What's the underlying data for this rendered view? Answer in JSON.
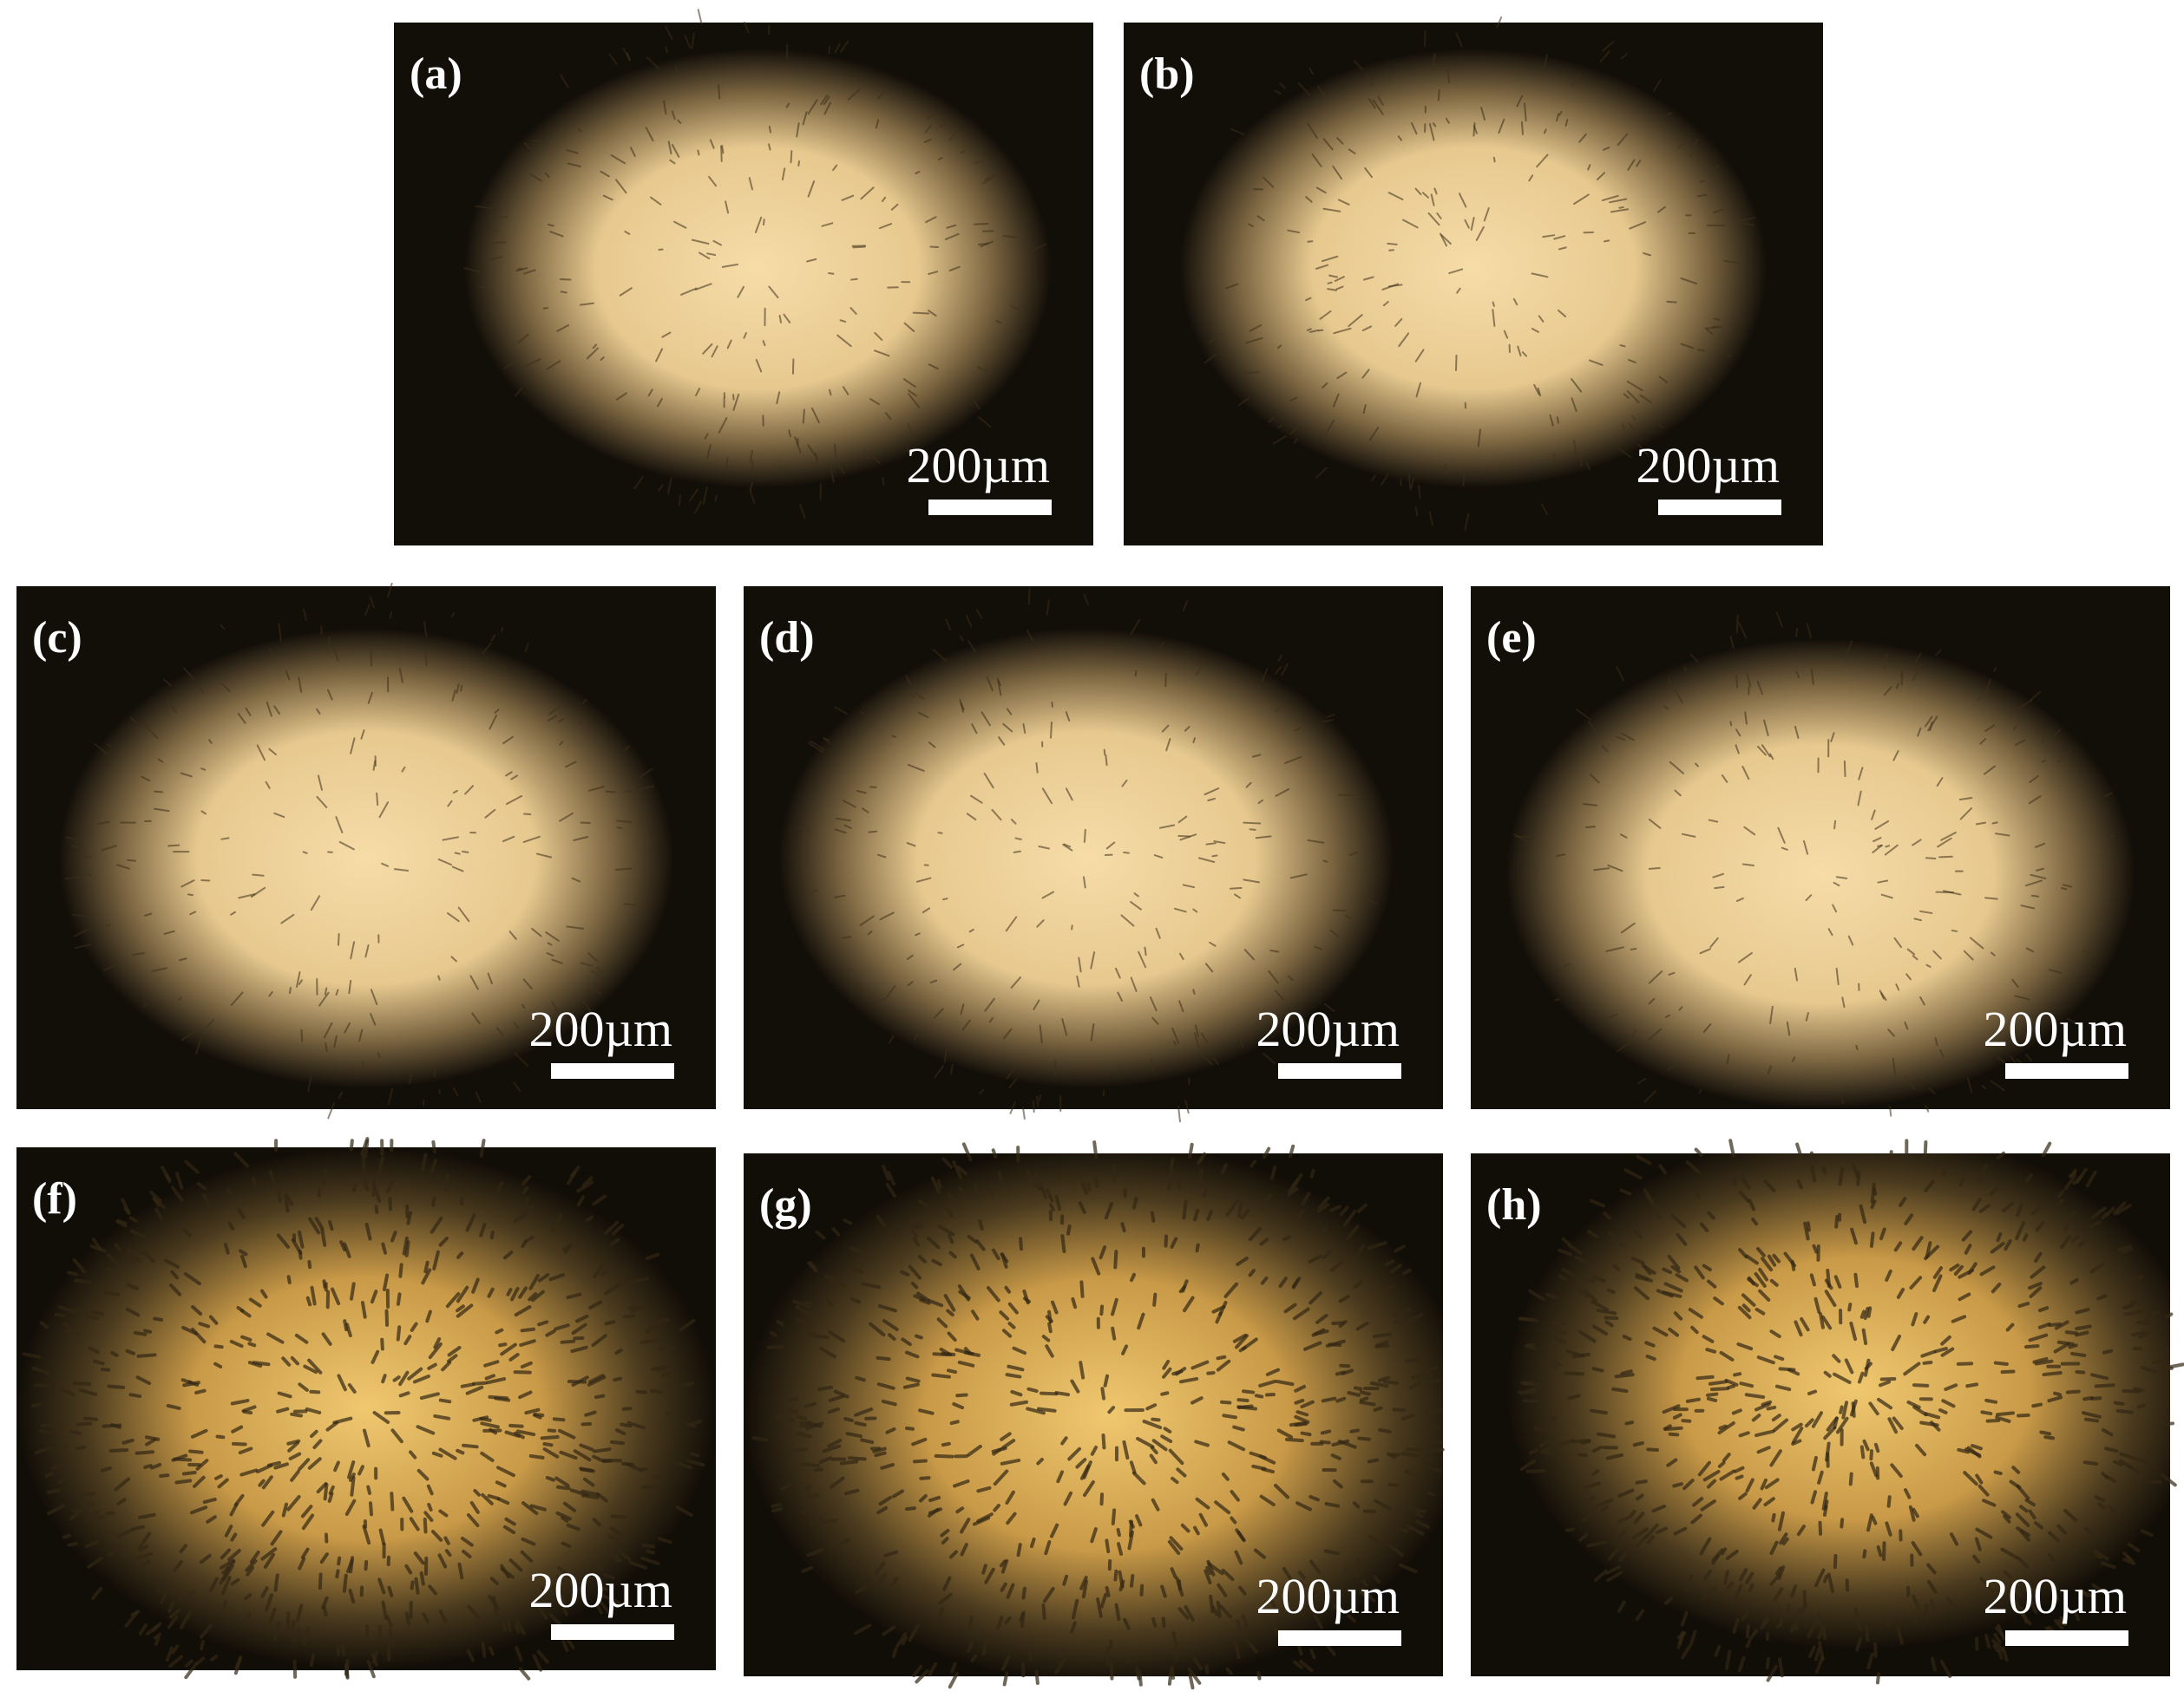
{
  "panels": [
    {
      "label": "(a)",
      "scale_bar": "200µm"
    },
    {
      "label": "(b)",
      "scale_bar": "200µm"
    },
    {
      "label": "(c)",
      "scale_bar": "200µm"
    },
    {
      "label": "(d)",
      "scale_bar": "200µm"
    },
    {
      "label": "(e)",
      "scale_bar": "200µm"
    },
    {
      "label": "(f)",
      "scale_bar": "200µm"
    },
    {
      "label": "(g)",
      "scale_bar": "200µm"
    },
    {
      "label": "(h)",
      "scale_bar": "200µm"
    }
  ]
}
